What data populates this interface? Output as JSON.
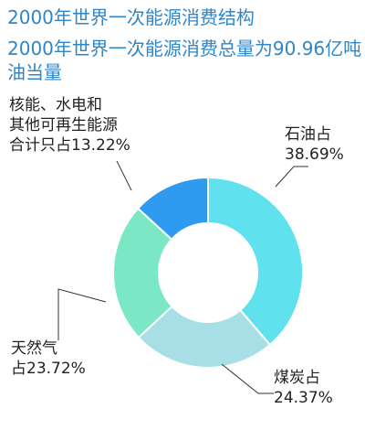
{
  "title": "2000年世界一次能源消费结构",
  "subtitle": "2000年世界一次能源消费总量为90.96亿吨油当量",
  "chart_data": {
    "type": "pie",
    "style": "donut",
    "categories": [
      "石油",
      "煤炭",
      "天然气",
      "核能、水电和其他可再生能源"
    ],
    "values": [
      38.69,
      24.37,
      23.72,
      13.22
    ],
    "unit": "%",
    "colors": [
      "#5fe1ee",
      "#a8dfe6",
      "#7be7c5",
      "#2f9bf0"
    ],
    "labels": [
      [
        "石油占",
        "38.69%"
      ],
      [
        "煤炭占",
        "24.37%"
      ],
      [
        "天然气",
        "占23.72%"
      ],
      [
        "核能、水电和",
        "其他可再生能源",
        "合计只占13.22%"
      ]
    ]
  }
}
